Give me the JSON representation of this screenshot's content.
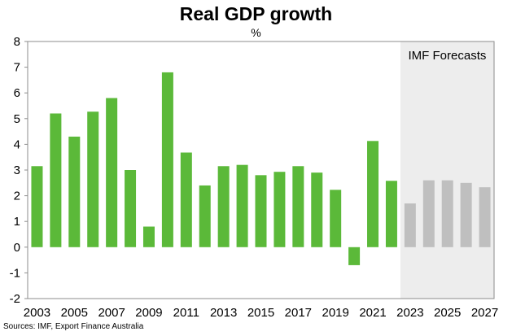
{
  "chart_data": {
    "type": "bar",
    "title": "Real GDP growth",
    "unit": "%",
    "categories": [
      "2003",
      "2004",
      "2005",
      "2006",
      "2007",
      "2008",
      "2009",
      "2010",
      "2011",
      "2012",
      "2013",
      "2014",
      "2015",
      "2016",
      "2017",
      "2018",
      "2019",
      "2020",
      "2021",
      "2022",
      "2023",
      "2024",
      "2025",
      "2026",
      "2027"
    ],
    "x_tick_labels": [
      "2003",
      "2005",
      "2007",
      "2009",
      "2011",
      "2013",
      "2015",
      "2017",
      "2019",
      "2021",
      "2023",
      "2025",
      "2027"
    ],
    "values": [
      3.15,
      5.2,
      4.3,
      5.27,
      5.8,
      3.0,
      0.8,
      6.8,
      3.68,
      2.4,
      3.15,
      3.2,
      2.8,
      2.93,
      3.15,
      2.9,
      2.23,
      -0.7,
      4.13,
      2.58,
      1.7,
      2.6,
      2.6,
      2.5,
      2.33
    ],
    "forecast_from": "2023",
    "forecast_label": "IMF Forecasts",
    "ylim": [
      -2,
      8
    ],
    "yticks": [
      -2,
      -1,
      0,
      1,
      2,
      3,
      4,
      5,
      6,
      7,
      8
    ],
    "grid": false,
    "colors": {
      "actual": "#5BB939",
      "forecast": "#BFBFBF",
      "forecast_region": "#EDEDED"
    }
  },
  "source": "Sources: IMF, Export Finance Australia"
}
